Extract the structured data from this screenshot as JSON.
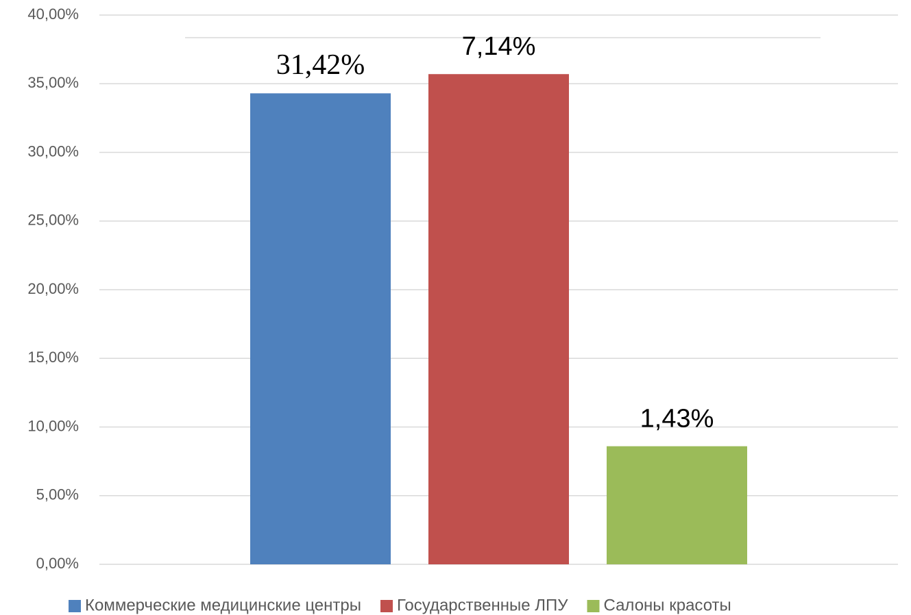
{
  "chart_data": {
    "type": "bar",
    "categories": [
      null
    ],
    "series": [
      {
        "name": "Коммерческие медицинские центры",
        "color": "#4f81bd",
        "values": [
          34.3
        ]
      },
      {
        "name": "Государственные ЛПУ",
        "color": "#c0504d",
        "values": [
          35.7
        ]
      },
      {
        "name": "Салоны красоты",
        "color": "#9bbb59",
        "values": [
          8.6
        ]
      }
    ],
    "annotations": [
      "31,42%",
      "7,14%",
      "1,43%"
    ],
    "ylim": [
      0,
      40
    ],
    "yticks": [
      {
        "value": 0,
        "label": "0,00%"
      },
      {
        "value": 5,
        "label": "5,00%"
      },
      {
        "value": 10,
        "label": "10,00%"
      },
      {
        "value": 15,
        "label": "15,00%"
      },
      {
        "value": 20,
        "label": "20,00%"
      },
      {
        "value": 25,
        "label": "25,00%"
      },
      {
        "value": 30,
        "label": "30,00%"
      },
      {
        "value": 35,
        "label": "35,00%"
      },
      {
        "value": 40,
        "label": "40,00%"
      }
    ],
    "grid": true,
    "legend": "bottom"
  }
}
